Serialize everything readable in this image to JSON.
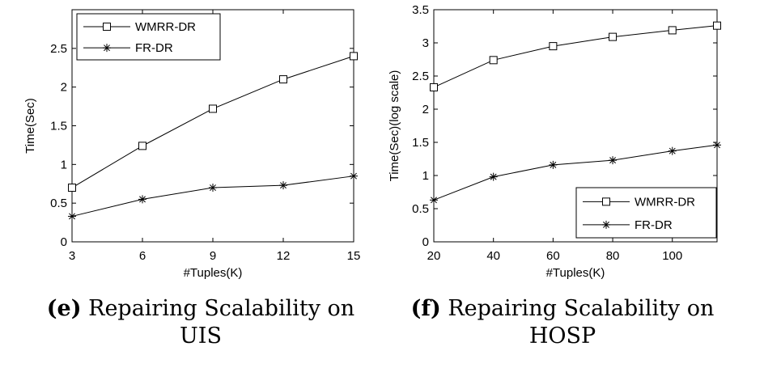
{
  "chart_data": [
    {
      "type": "line",
      "caption_letter": "(e)",
      "caption_text": "Repairing Scalability on UIS",
      "caption_lines": [
        "Repairing Scalability on",
        "UIS"
      ],
      "xlabel": "#Tuples(K)",
      "ylabel": "Time(Sec)",
      "xlim": [
        3,
        15
      ],
      "ylim": [
        0,
        3
      ],
      "xticks": [
        3,
        6,
        9,
        12,
        15
      ],
      "yticks": [
        0,
        0.5,
        1,
        1.5,
        2,
        2.5
      ],
      "ytick_labels": [
        "0",
        "0.5",
        "1",
        "1.5",
        "2",
        "2.5"
      ],
      "grid": false,
      "legend_position": "top-left",
      "series": [
        {
          "name": "WMRR-DR",
          "marker": "square",
          "x": [
            3,
            6,
            9,
            12,
            15
          ],
          "values": [
            0.7,
            1.24,
            1.72,
            2.1,
            2.4
          ]
        },
        {
          "name": "FR-DR",
          "marker": "asterisk",
          "x": [
            3,
            6,
            9,
            12,
            15
          ],
          "values": [
            0.33,
            0.55,
            0.7,
            0.73,
            0.85
          ]
        }
      ]
    },
    {
      "type": "line",
      "caption_letter": "(f)",
      "caption_text": "Repairing Scalability on HOSP",
      "caption_lines": [
        "Repairing Scalability on",
        "HOSP"
      ],
      "xlabel": "#Tuples(K)",
      "ylabel": "Time(Sec)(log scale)",
      "xlim": [
        20,
        115
      ],
      "ylim": [
        0,
        3.5
      ],
      "xticks": [
        20,
        40,
        60,
        80,
        100
      ],
      "yticks": [
        0,
        0.5,
        1,
        1.5,
        2,
        2.5,
        3,
        3.5
      ],
      "ytick_labels": [
        "0",
        "0.5",
        "1",
        "1.5",
        "2",
        "2.5",
        "3",
        "3.5"
      ],
      "grid": false,
      "legend_position": "bottom-right",
      "series": [
        {
          "name": "WMRR-DR",
          "marker": "square",
          "x": [
            20,
            40,
            60,
            80,
            100,
            115
          ],
          "values": [
            2.33,
            2.74,
            2.95,
            3.09,
            3.19,
            3.26
          ]
        },
        {
          "name": "FR-DR",
          "marker": "asterisk",
          "x": [
            20,
            40,
            60,
            80,
            100,
            115
          ],
          "values": [
            0.63,
            0.98,
            1.16,
            1.23,
            1.37,
            1.46
          ]
        }
      ]
    }
  ]
}
